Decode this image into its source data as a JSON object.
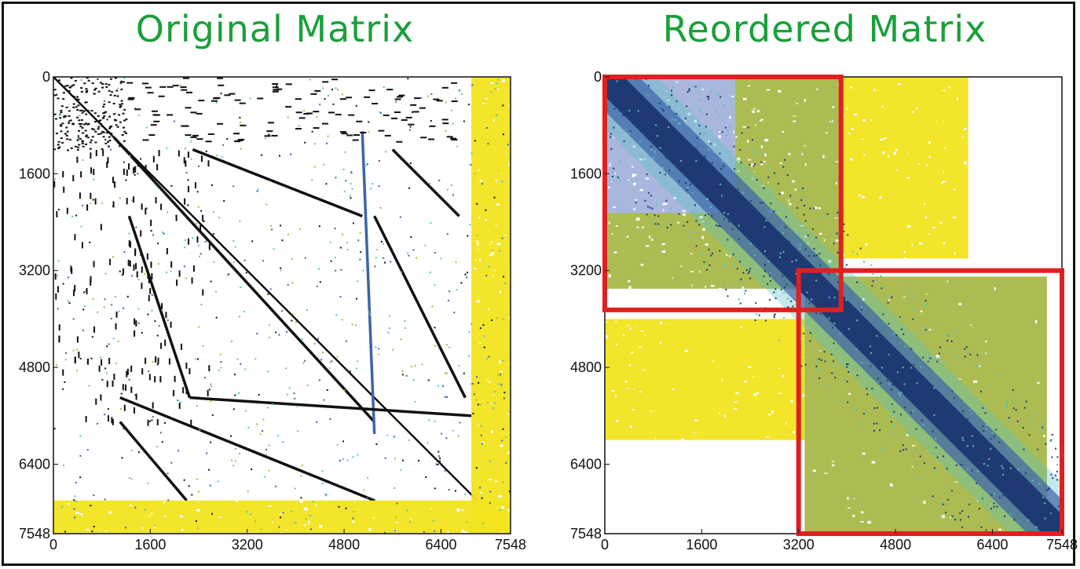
{
  "colors": {
    "title": "#1aa03a",
    "dense_navy": "#1f3a73",
    "blue": "#3c64a8",
    "lightblue": "#a4b3dd",
    "olive": "#a8b84a",
    "yellow": "#f1e41f",
    "cyan": "#59c2c0",
    "highlight": "#e02020",
    "black": "#111111"
  },
  "chart_data": [
    {
      "type": "heatmap",
      "title": "Original Matrix",
      "xlabel": "",
      "ylabel": "",
      "n": 7548,
      "xlim": [
        0,
        7548
      ],
      "ylim": [
        0,
        7548
      ],
      "y_inverted": true,
      "x_ticks": [
        0,
        1600,
        3200,
        4800,
        6400,
        7548
      ],
      "y_ticks": [
        0,
        1600,
        3200,
        4800,
        6400,
        7548
      ],
      "grid": false,
      "nonzero_bands": [
        {
          "kind": "diagonal",
          "from": [
            0,
            0
          ],
          "to": [
            7548,
            7548
          ],
          "color": "black"
        },
        {
          "kind": "line",
          "from": [
            1000,
            1000
          ],
          "to": [
            5300,
            5700
          ],
          "color": "black"
        },
        {
          "kind": "line",
          "from": [
            5100,
            900
          ],
          "to": [
            5300,
            5900
          ],
          "color": "blue"
        },
        {
          "kind": "line",
          "from": [
            1250,
            2300
          ],
          "to": [
            2250,
            5300
          ],
          "color": "black"
        },
        {
          "kind": "line",
          "from": [
            2250,
            5300
          ],
          "to": [
            6900,
            5600
          ],
          "color": "black"
        },
        {
          "kind": "line",
          "from": [
            2300,
            1200
          ],
          "to": [
            5100,
            2300
          ],
          "color": "black"
        },
        {
          "kind": "line",
          "from": [
            5600,
            1200
          ],
          "to": [
            6700,
            2300
          ],
          "color": "black"
        },
        {
          "kind": "line",
          "from": [
            5300,
            2300
          ],
          "to": [
            6800,
            5300
          ],
          "color": "black"
        },
        {
          "kind": "line",
          "from": [
            1100,
            5300
          ],
          "to": [
            5300,
            7000
          ],
          "color": "black"
        },
        {
          "kind": "line",
          "from": [
            1100,
            5700
          ],
          "to": [
            2200,
            7000
          ],
          "color": "black"
        },
        {
          "kind": "block",
          "x": [
            0,
            7548
          ],
          "y": [
            7000,
            7548
          ],
          "color": "yellow"
        },
        {
          "kind": "block",
          "x": [
            6900,
            7548
          ],
          "y": [
            0,
            7548
          ],
          "color": "yellow"
        }
      ]
    },
    {
      "type": "heatmap",
      "title": "Reordered Matrix",
      "xlabel": "",
      "ylabel": "",
      "n": 7548,
      "xlim": [
        0,
        7548
      ],
      "ylim": [
        0,
        7548
      ],
      "y_inverted": true,
      "x_ticks": [
        0,
        1600,
        3200,
        4800,
        6400,
        7548
      ],
      "y_ticks": [
        0,
        1600,
        3200,
        4800,
        6400,
        7548
      ],
      "grid": false,
      "nonzero_bands": [
        {
          "kind": "block",
          "x": [
            0,
            2150
          ],
          "y": [
            0,
            2250
          ],
          "color": "lightblue"
        },
        {
          "kind": "block",
          "x": [
            2150,
            3900
          ],
          "y": [
            0,
            2250
          ],
          "color": "olive"
        },
        {
          "kind": "block",
          "x": [
            0,
            3900
          ],
          "y": [
            2250,
            3500
          ],
          "color": "olive"
        },
        {
          "kind": "block",
          "x": [
            3900,
            6000
          ],
          "y": [
            0,
            3000
          ],
          "color": "yellow"
        },
        {
          "kind": "block",
          "x": [
            0,
            3300
          ],
          "y": [
            4000,
            6000
          ],
          "color": "yellow"
        },
        {
          "kind": "block",
          "x": [
            3300,
            7300
          ],
          "y": [
            3300,
            7548
          ],
          "color": "olive"
        },
        {
          "kind": "diagonal_band",
          "from": [
            0,
            0
          ],
          "to": [
            7548,
            7548
          ],
          "half_width": 500,
          "color": "dense_navy"
        }
      ],
      "highlight_boxes": [
        {
          "x": [
            0,
            3900
          ],
          "y": [
            0,
            3850
          ],
          "color": "highlight"
        },
        {
          "x": [
            3200,
            7548
          ],
          "y": [
            3200,
            7548
          ],
          "color": "highlight"
        }
      ]
    }
  ]
}
